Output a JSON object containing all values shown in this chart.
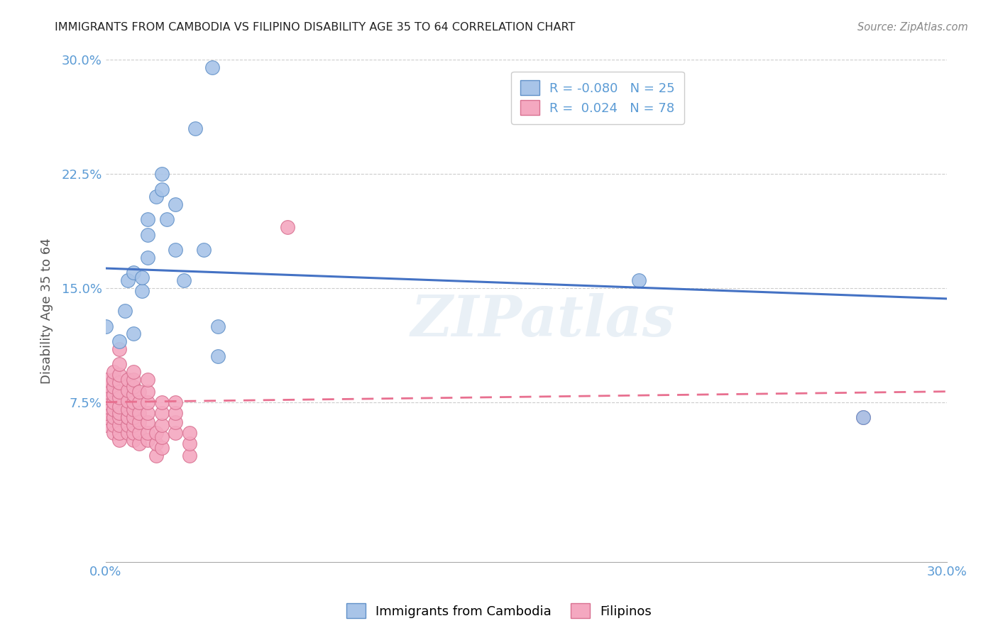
{
  "title": "IMMIGRANTS FROM CAMBODIA VS FILIPINO DISABILITY AGE 35 TO 64 CORRELATION CHART",
  "source": "Source: ZipAtlas.com",
  "ylabel": "Disability Age 35 to 64",
  "color_cambodia": "#a8c4e8",
  "color_filipino": "#f4a8c0",
  "color_line_cambodia": "#4472c4",
  "color_line_filipino": "#e87090",
  "color_axis_labels": "#5b9bd5",
  "watermark": "ZIPatlas",
  "R_cambodia": "-0.080",
  "N_cambodia": "25",
  "R_filipino": "0.024",
  "N_filipino": "78",
  "legend_cambodia": "Immigrants from Cambodia",
  "legend_filipino": "Filipinos",
  "xlim": [
    0.0,
    0.3
  ],
  "ylim": [
    -0.03,
    0.3
  ],
  "cambodia_points": [
    [
      0.0,
      0.125
    ],
    [
      0.005,
      0.115
    ],
    [
      0.007,
      0.135
    ],
    [
      0.008,
      0.155
    ],
    [
      0.01,
      0.12
    ],
    [
      0.01,
      0.16
    ],
    [
      0.013,
      0.148
    ],
    [
      0.013,
      0.157
    ],
    [
      0.015,
      0.17
    ],
    [
      0.015,
      0.185
    ],
    [
      0.015,
      0.195
    ],
    [
      0.018,
      0.21
    ],
    [
      0.02,
      0.215
    ],
    [
      0.02,
      0.225
    ],
    [
      0.022,
      0.195
    ],
    [
      0.025,
      0.175
    ],
    [
      0.025,
      0.205
    ],
    [
      0.028,
      0.155
    ],
    [
      0.032,
      0.255
    ],
    [
      0.035,
      0.175
    ],
    [
      0.038,
      0.295
    ],
    [
      0.04,
      0.125
    ],
    [
      0.04,
      0.105
    ],
    [
      0.19,
      0.155
    ],
    [
      0.27,
      0.065
    ]
  ],
  "filipino_points": [
    [
      0.0,
      0.06
    ],
    [
      0.0,
      0.065
    ],
    [
      0.0,
      0.068
    ],
    [
      0.0,
      0.072
    ],
    [
      0.0,
      0.075
    ],
    [
      0.0,
      0.078
    ],
    [
      0.0,
      0.082
    ],
    [
      0.0,
      0.086
    ],
    [
      0.0,
      0.09
    ],
    [
      0.003,
      0.055
    ],
    [
      0.003,
      0.06
    ],
    [
      0.003,
      0.065
    ],
    [
      0.003,
      0.07
    ],
    [
      0.003,
      0.075
    ],
    [
      0.003,
      0.08
    ],
    [
      0.003,
      0.085
    ],
    [
      0.003,
      0.09
    ],
    [
      0.003,
      0.095
    ],
    [
      0.005,
      0.05
    ],
    [
      0.005,
      0.055
    ],
    [
      0.005,
      0.06
    ],
    [
      0.005,
      0.065
    ],
    [
      0.005,
      0.068
    ],
    [
      0.005,
      0.072
    ],
    [
      0.005,
      0.078
    ],
    [
      0.005,
      0.082
    ],
    [
      0.005,
      0.088
    ],
    [
      0.005,
      0.093
    ],
    [
      0.005,
      0.1
    ],
    [
      0.005,
      0.11
    ],
    [
      0.008,
      0.055
    ],
    [
      0.008,
      0.06
    ],
    [
      0.008,
      0.065
    ],
    [
      0.008,
      0.065
    ],
    [
      0.008,
      0.07
    ],
    [
      0.008,
      0.076
    ],
    [
      0.008,
      0.083
    ],
    [
      0.008,
      0.09
    ],
    [
      0.01,
      0.05
    ],
    [
      0.01,
      0.055
    ],
    [
      0.01,
      0.06
    ],
    [
      0.01,
      0.065
    ],
    [
      0.01,
      0.07
    ],
    [
      0.01,
      0.075
    ],
    [
      0.01,
      0.08
    ],
    [
      0.01,
      0.085
    ],
    [
      0.01,
      0.09
    ],
    [
      0.01,
      0.095
    ],
    [
      0.012,
      0.048
    ],
    [
      0.012,
      0.055
    ],
    [
      0.012,
      0.062
    ],
    [
      0.012,
      0.068
    ],
    [
      0.012,
      0.075
    ],
    [
      0.012,
      0.082
    ],
    [
      0.015,
      0.05
    ],
    [
      0.015,
      0.055
    ],
    [
      0.015,
      0.062
    ],
    [
      0.015,
      0.068
    ],
    [
      0.015,
      0.075
    ],
    [
      0.015,
      0.082
    ],
    [
      0.015,
      0.09
    ],
    [
      0.018,
      0.04
    ],
    [
      0.018,
      0.048
    ],
    [
      0.018,
      0.055
    ],
    [
      0.02,
      0.045
    ],
    [
      0.02,
      0.052
    ],
    [
      0.02,
      0.06
    ],
    [
      0.02,
      0.068
    ],
    [
      0.02,
      0.075
    ],
    [
      0.025,
      0.055
    ],
    [
      0.025,
      0.062
    ],
    [
      0.025,
      0.068
    ],
    [
      0.025,
      0.075
    ],
    [
      0.03,
      0.04
    ],
    [
      0.03,
      0.048
    ],
    [
      0.03,
      0.055
    ],
    [
      0.065,
      0.19
    ],
    [
      0.27,
      0.065
    ]
  ],
  "cam_line": [
    [
      0.0,
      0.163
    ],
    [
      0.3,
      0.143
    ]
  ],
  "fil_line": [
    [
      0.0,
      0.075
    ],
    [
      0.3,
      0.082
    ]
  ]
}
